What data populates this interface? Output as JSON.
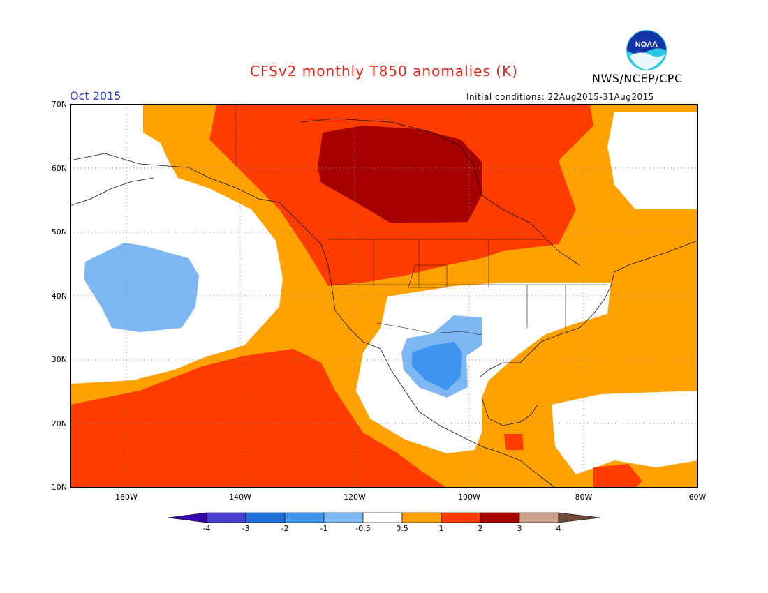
{
  "title": "CFSv2 monthly T850 anomalies (K)",
  "organization": "NWS/NCEP/CPC",
  "logo_text": "NOAA",
  "target_month": "Oct 2015",
  "initial_conditions": "Initial conditions: 22Aug2015-31Aug2015",
  "map": {
    "lon_range": [
      -172,
      -60
    ],
    "lat_range": [
      10,
      70
    ],
    "lat_labels": [
      "10N",
      "20N",
      "30N",
      "40N",
      "50N",
      "60N",
      "70N"
    ],
    "lon_labels": [
      "160W",
      "140W",
      "120W",
      "100W",
      "80W",
      "60W"
    ],
    "grid": true
  },
  "colorbar": {
    "labels": [
      "-4",
      "-3",
      "-2",
      "-1",
      "-0.5",
      "0.5",
      "1",
      "2",
      "3",
      "4"
    ],
    "colors": [
      "#3a06b0",
      "#4a3fd0",
      "#1f6fd8",
      "#3d95f0",
      "#7db8f5",
      "#ffffff",
      "#ffa200",
      "#ff3c00",
      "#a70000",
      "#c8a08c",
      "#6e4a3a"
    ]
  },
  "anomaly_regions": [
    {
      "level": "0.5-1",
      "color": "#ffa200",
      "description": "broad warm anomaly over North America and Atlantic"
    },
    {
      "level": "1-2",
      "color": "#ff3c00",
      "description": "Canada and subtropical Pacific"
    },
    {
      "level": "2-3",
      "color": "#a70000",
      "description": "central Canada maximum"
    },
    {
      "level": "-1 to -0.5",
      "color": "#7db8f5",
      "description": "North Pacific cool pocket"
    },
    {
      "level": "-2 to -1",
      "color": "#3d95f0",
      "description": "northern Mexico / southwest US"
    }
  ]
}
